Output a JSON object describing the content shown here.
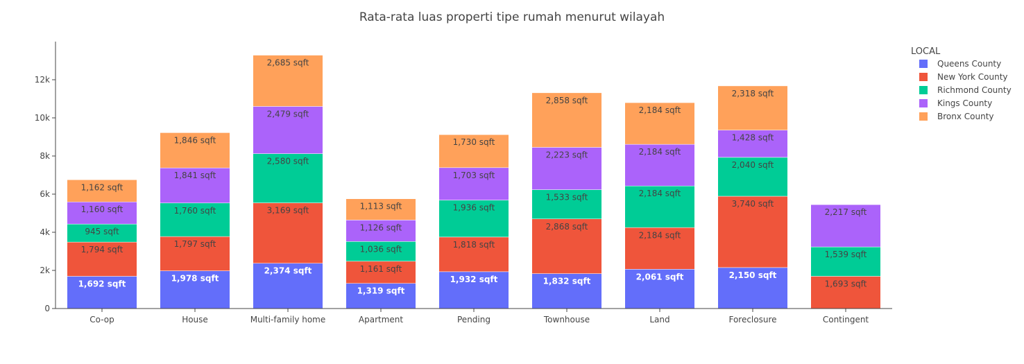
{
  "chart_data": {
    "type": "bar",
    "stacked": true,
    "title": "Rata-rata luas properti tipe rumah menurut wilayah",
    "xlabel": "",
    "ylabel": "",
    "ylim": [
      0,
      14000
    ],
    "yticks": [
      {
        "value": 0,
        "label": "0"
      },
      {
        "value": 2000,
        "label": "2k"
      },
      {
        "value": 4000,
        "label": "4k"
      },
      {
        "value": 6000,
        "label": "6k"
      },
      {
        "value": 8000,
        "label": "8k"
      },
      {
        "value": 10000,
        "label": "10k"
      },
      {
        "value": 12000,
        "label": "12k"
      }
    ],
    "grid": false,
    "legend": {
      "title": "LOCAL",
      "placement": "top-right"
    },
    "categories": [
      "Co-op",
      "House",
      "Multi-family home",
      "Apartment",
      "Pending",
      "Townhouse",
      "Land",
      "Foreclosure",
      "Contingent"
    ],
    "series": [
      {
        "name": "Queens County",
        "color": "#636efa",
        "text_color": "#ffffff",
        "bold": true,
        "values": [
          1692,
          1978,
          2374,
          1319,
          1932,
          1832,
          2061,
          2150,
          null
        ],
        "labels": [
          "1,692 sqft",
          "1,978 sqft",
          "2,374 sqft",
          "1,319 sqft",
          "1,932 sqft",
          "1,832 sqft",
          "2,061 sqft",
          "2,150 sqft",
          ""
        ]
      },
      {
        "name": "New York County",
        "color": "#ef553b",
        "text_color": "#444444",
        "bold": false,
        "values": [
          1794,
          1797,
          3169,
          1161,
          1818,
          2868,
          2184,
          3740,
          1693
        ],
        "labels": [
          "1,794 sqft",
          "1,797 sqft",
          "3,169 sqft",
          "1,161 sqft",
          "1,818 sqft",
          "2,868 sqft",
          "2,184 sqft",
          "3,740 sqft",
          "1,693 sqft"
        ]
      },
      {
        "name": "Richmond County",
        "color": "#00cc96",
        "text_color": "#444444",
        "bold": false,
        "values": [
          945,
          1760,
          2580,
          1036,
          1936,
          1533,
          2184,
          2040,
          1539
        ],
        "labels": [
          "945 sqft",
          "1,760 sqft",
          "2,580 sqft",
          "1,036 sqft",
          "1,936 sqft",
          "1,533 sqft",
          "2,184 sqft",
          "2,040 sqft",
          "1,539 sqft"
        ]
      },
      {
        "name": "Kings County",
        "color": "#ab63fa",
        "text_color": "#444444",
        "bold": false,
        "values": [
          1160,
          1841,
          2479,
          1126,
          1703,
          2223,
          2184,
          1428,
          2217
        ],
        "labels": [
          "1,160 sqft",
          "1,841 sqft",
          "2,479 sqft",
          "1,126 sqft",
          "1,703 sqft",
          "2,223 sqft",
          "2,184 sqft",
          "1,428 sqft",
          "2,217 sqft"
        ]
      },
      {
        "name": "Bronx County",
        "color": "#ffa15a",
        "text_color": "#444444",
        "bold": false,
        "values": [
          1162,
          1846,
          2685,
          1113,
          1730,
          2858,
          2184,
          2318,
          null
        ],
        "labels": [
          "1,162 sqft",
          "1,846 sqft",
          "2,685 sqft",
          "1,113 sqft",
          "1,730 sqft",
          "2,858 sqft",
          "2,184 sqft",
          "2,318 sqft",
          ""
        ]
      }
    ]
  }
}
